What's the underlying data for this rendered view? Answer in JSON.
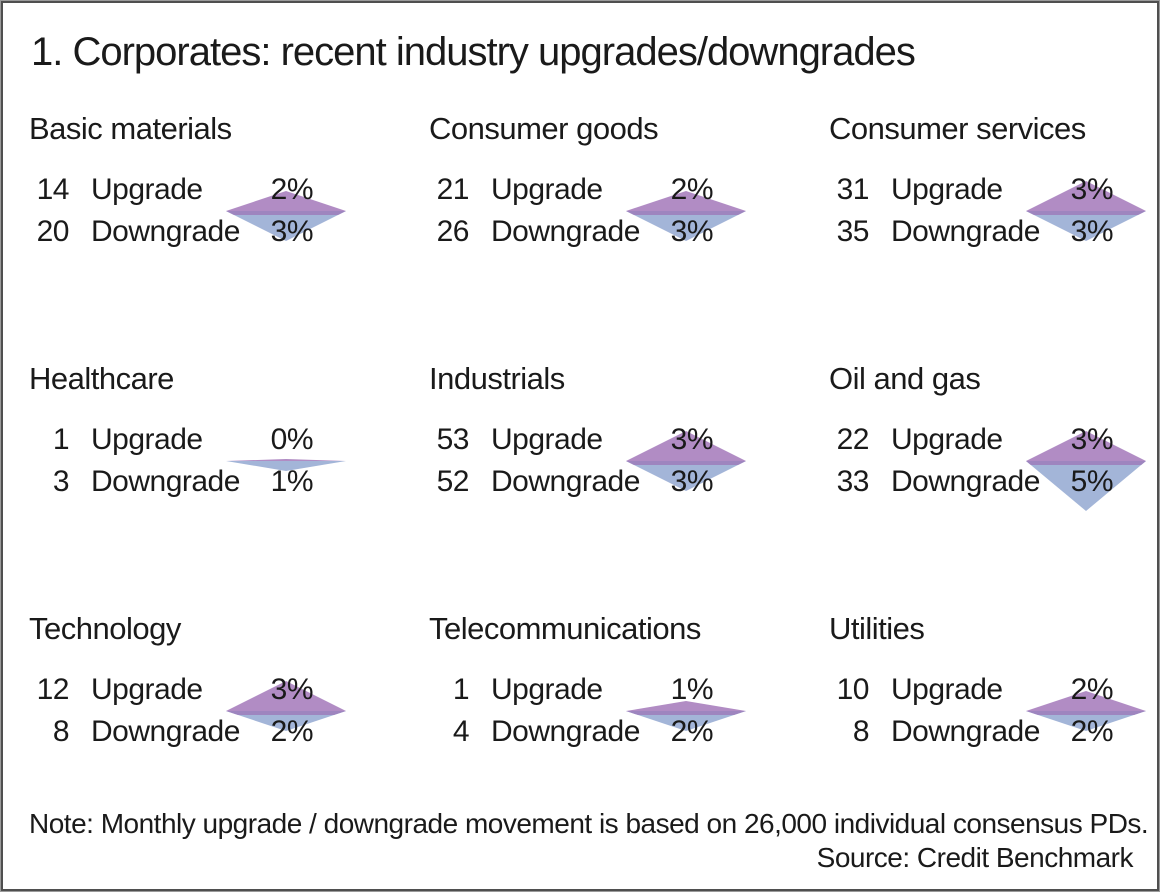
{
  "title": "1. Corporates: recent industry upgrades/downgrades",
  "note": "Note: Monthly upgrade / downgrade movement is based on 26,000 individual consensus PDs.",
  "source": "Source: Credit Benchmark",
  "labels": {
    "upgrade": "Upgrade",
    "downgrade": "Downgrade"
  },
  "colors": {
    "upgrade_triangle": "#b18cc4",
    "downgrade_triangle": "#a3b5d8",
    "junction_band": "#9e85bf",
    "text": "#1a1a1a",
    "border": "#4f4f4f"
  },
  "chart_data": {
    "type": "table",
    "title": "1. Corporates: recent industry upgrades/downgrades",
    "columns": [
      "count",
      "direction",
      "percent"
    ],
    "glyph": "diamond (upper purple triangle = upgrade %, lower blue triangle = downgrade %, height ~10px per 1%)",
    "industries": [
      {
        "name": "Basic materials",
        "upgrade": {
          "count": "14",
          "pct": 2,
          "pct_label": "2%"
        },
        "downgrade": {
          "count": "20",
          "pct": 3,
          "pct_label": "3%"
        }
      },
      {
        "name": "Consumer goods",
        "upgrade": {
          "count": "21",
          "pct": 2,
          "pct_label": "2%"
        },
        "downgrade": {
          "count": "26",
          "pct": 3,
          "pct_label": "3%"
        }
      },
      {
        "name": "Consumer services",
        "upgrade": {
          "count": "31",
          "pct": 3,
          "pct_label": "3%"
        },
        "downgrade": {
          "count": "35",
          "pct": 3,
          "pct_label": "3%"
        }
      },
      {
        "name": "Healthcare",
        "upgrade": {
          "count": "1",
          "pct": 0,
          "pct_label": "0%"
        },
        "downgrade": {
          "count": "3",
          "pct": 1,
          "pct_label": "1%"
        }
      },
      {
        "name": "Industrials",
        "upgrade": {
          "count": "53",
          "pct": 3,
          "pct_label": "3%"
        },
        "downgrade": {
          "count": "52",
          "pct": 3,
          "pct_label": "3%"
        }
      },
      {
        "name": "Oil and gas",
        "upgrade": {
          "count": "22",
          "pct": 3,
          "pct_label": "3%"
        },
        "downgrade": {
          "count": "33",
          "pct": 5,
          "pct_label": "5%"
        }
      },
      {
        "name": "Technology",
        "upgrade": {
          "count": "12",
          "pct": 3,
          "pct_label": "3%"
        },
        "downgrade": {
          "count": "8",
          "pct": 2,
          "pct_label": "2%"
        }
      },
      {
        "name": "Telecommunications",
        "upgrade": {
          "count": "1",
          "pct": 1,
          "pct_label": "1%"
        },
        "downgrade": {
          "count": "4",
          "pct": 2,
          "pct_label": "2%"
        }
      },
      {
        "name": "Utilities",
        "upgrade": {
          "count": "10",
          "pct": 2,
          "pct_label": "2%"
        },
        "downgrade": {
          "count": "8",
          "pct": 2,
          "pct_label": "2%"
        }
      }
    ]
  }
}
